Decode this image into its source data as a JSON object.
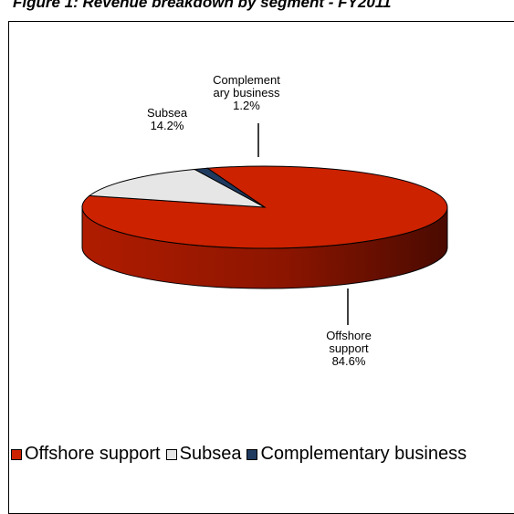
{
  "chart_data": {
    "type": "pie",
    "title": "Figure 1: Revenue breakdown by segment - FY2011",
    "slices": [
      {
        "label": "Offshore support",
        "label_lines": [
          "Offshore",
          "support"
        ],
        "value": 84.6,
        "value_text": "84.6%",
        "color": "#cc2200",
        "side_color": "#9a1800"
      },
      {
        "label": "Subsea",
        "label_lines": [
          "Subsea"
        ],
        "value": 14.2,
        "value_text": "14.2%",
        "color": "#e6e6e6",
        "side_color": "#b5b5b5"
      },
      {
        "label": "Complementary business",
        "label_lines": [
          "Complement",
          "ary business"
        ],
        "value": 1.2,
        "value_text": "1.2%",
        "color": "#1f3a5f",
        "side_color": "#142640"
      }
    ],
    "legend": {
      "placement": "bottom",
      "items": [
        "Offshore support",
        "Subsea",
        "Complementary business"
      ]
    }
  }
}
